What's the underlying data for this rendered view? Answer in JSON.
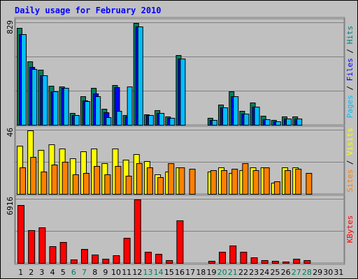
{
  "title": "Daily usage for February 2010",
  "chart_data": {
    "type": "bar",
    "categories": [
      "1",
      "2",
      "3",
      "4",
      "5",
      "6",
      "7",
      "8",
      "9",
      "10",
      "11",
      "12",
      "13",
      "14",
      "15",
      "16",
      "17",
      "18",
      "19",
      "20",
      "21",
      "22",
      "23",
      "24",
      "25",
      "26",
      "27",
      "28",
      "29",
      "30",
      "31"
    ],
    "weekend_days": [
      "6",
      "7",
      "13",
      "14",
      "20",
      "21",
      "27",
      "28"
    ],
    "panels": [
      {
        "id": "top",
        "ymax": 829,
        "ymax_label": "829",
        "right_labels": [
          {
            "text": "Pages",
            "color": "#00BFFF"
          },
          {
            "text": " / ",
            "color": "#000000"
          },
          {
            "text": "Files",
            "color": "#0000FF"
          },
          {
            "text": " / ",
            "color": "#000000"
          },
          {
            "text": "Hits",
            "color": "#008080"
          }
        ],
        "series": [
          {
            "name": "Hits",
            "color": "#008060",
            "values": [
              787,
              516,
              448,
              317,
              311,
              98,
              234,
              299,
              133,
              325,
              82,
              829,
              85,
              117,
              68,
              567,
              0,
              0,
              56,
              167,
              270,
              114,
              179,
              73,
              38,
              70,
              66,
              0,
              0,
              0,
              0
            ]
          },
          {
            "name": "Files",
            "color": "#0000FF",
            "values": [
              740,
              469,
              402,
              270,
              302,
              78,
              201,
              253,
              101,
              308,
              67,
              799,
              78,
              97,
              54,
              541,
              0,
              0,
              37,
              141,
              230,
              89,
              149,
              46,
              29,
              53,
              52,
              0,
              0,
              0,
              0
            ]
          },
          {
            "name": "Pages",
            "color": "#00BFFF",
            "values": [
              740,
              455,
              402,
              270,
              302,
              78,
              191,
              234,
              62,
              112,
              312,
              799,
              78,
              97,
              54,
              541,
              0,
              0,
              37,
              141,
              230,
              89,
              149,
              46,
              29,
              53,
              52,
              0,
              0,
              0,
              0
            ]
          }
        ]
      },
      {
        "id": "middle",
        "ymax": 46,
        "ymax_label": "46",
        "right_labels": [
          {
            "text": "Sites",
            "color": "#FF8000"
          },
          {
            "text": " / ",
            "color": "#000000"
          },
          {
            "text": "Visits",
            "color": "#FFFF00"
          }
        ],
        "series": [
          {
            "name": "Visits",
            "color": "#FFFF00",
            "values": [
              35,
              46,
              32,
              36,
              33,
              26,
              31,
              33,
              22,
              33,
              25,
              29,
              24,
              14,
              16,
              19,
              0,
              0,
              16,
              19,
              15,
              17,
              19,
              19,
              8,
              19,
              19,
              0,
              0,
              0,
              0
            ]
          },
          {
            "name": "Sites",
            "color": "#FF8000",
            "values": [
              19,
              27,
              16,
              21,
              23,
              14,
              15,
              20,
              14,
              20,
              13,
              22,
              19,
              12,
              22,
              19,
              18,
              0,
              17,
              17,
              18,
              22,
              17,
              19,
              9,
              17,
              18,
              15,
              0,
              0,
              0
            ]
          }
        ]
      },
      {
        "id": "bottom",
        "ymax": 6916,
        "ymax_label": "6916",
        "right_labels": [
          {
            "text": "KBytes",
            "color": "#FF0000"
          }
        ],
        "series": [
          {
            "name": "KBytes",
            "color": "#FF0000",
            "values": [
              6300,
              3600,
              3900,
              1800,
              2300,
              370,
              1500,
              910,
              430,
              820,
              2700,
              6916,
              1200,
              1000,
              320,
              4600,
              0,
              0,
              200,
              1200,
              1900,
              1200,
              640,
              280,
              240,
              180,
              420,
              330,
              0,
              0,
              0
            ]
          }
        ]
      }
    ]
  }
}
